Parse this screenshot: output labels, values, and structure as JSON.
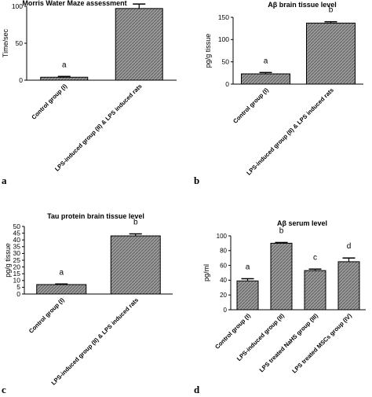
{
  "panel_letters": [
    "a",
    "b",
    "c",
    "d"
  ],
  "chart_data": [
    {
      "type": "bar",
      "title": "Morris Water Maze assessment",
      "xlabel": "",
      "ylabel": "Time/sec",
      "ylim": [
        0,
        100
      ],
      "yticks": [
        0,
        50,
        100
      ],
      "categories": [
        "Control group (I)",
        "LPS-induced group (II) & LPS induced rats"
      ],
      "values": [
        4,
        97
      ],
      "errors": [
        1,
        6
      ],
      "annotations": [
        "a",
        "b"
      ],
      "grid": false,
      "bar_fill": "#8c8c8c"
    },
    {
      "type": "bar",
      "title": "Aβ brain tissue level",
      "xlabel": "",
      "ylabel": "pg/g tissue",
      "ylim": [
        0,
        150
      ],
      "yticks": [
        0,
        50,
        100,
        150
      ],
      "categories": [
        "Control group (I)",
        "LPS-induced group (II) & LPS induced rats"
      ],
      "values": [
        23,
        137
      ],
      "errors": [
        3,
        3
      ],
      "annotations": [
        "a",
        "b"
      ],
      "grid": false,
      "bar_fill": "#8c8c8c"
    },
    {
      "type": "bar",
      "title": "Tau protein brain tissue level",
      "xlabel": "",
      "ylabel": "pg/g tissue",
      "ylim": [
        0,
        50
      ],
      "yticks": [
        0,
        5,
        10,
        15,
        20,
        25,
        30,
        35,
        40,
        45,
        50
      ],
      "categories": [
        "Control group (I)",
        "LPS-induced group (II) & LPS induced rats"
      ],
      "values": [
        7,
        43
      ],
      "errors": [
        0.4,
        1.5
      ],
      "annotations": [
        "a",
        "b"
      ],
      "grid": false,
      "bar_fill": "#8c8c8c"
    },
    {
      "type": "bar",
      "title": "Aβ serum level",
      "xlabel": "",
      "ylabel": "pg/ml",
      "ylim": [
        0,
        100
      ],
      "yticks": [
        0,
        20,
        40,
        60,
        80,
        100
      ],
      "categories": [
        "Control group (I)",
        "LPS-induced group (II)",
        "LPS treated NaHS group (III)",
        "LPS treated MSCs group (IV)"
      ],
      "values": [
        39,
        90,
        53,
        65
      ],
      "errors": [
        3,
        1,
        2,
        5
      ],
      "annotations": [
        "a",
        "b",
        "c",
        "d"
      ],
      "grid": false,
      "bar_fill": "#8c8c8c"
    }
  ]
}
